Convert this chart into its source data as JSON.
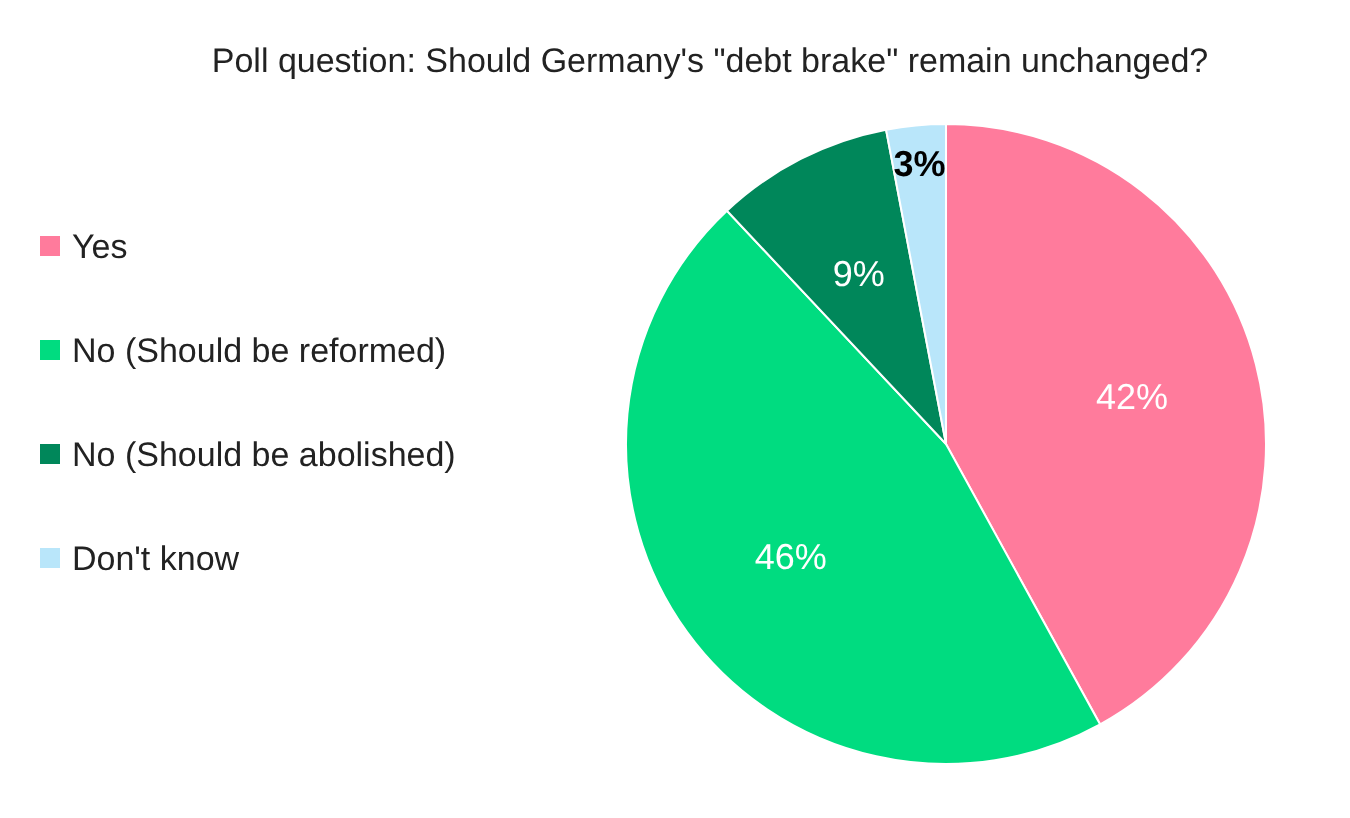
{
  "chart_data": {
    "type": "pie",
    "title": "Poll question: Should Germany's \"debt brake\" remain unchanged?",
    "categories": [
      "Yes",
      "No (Should be reformed)",
      "No (Should be abolished)",
      "Don't know"
    ],
    "values": [
      42,
      46,
      9,
      3
    ],
    "colors": [
      "#ff7b9c",
      "#00dc80",
      "#00875a",
      "#b9e6fa"
    ],
    "value_labels": [
      "42%",
      "46%",
      "9%",
      "3%"
    ],
    "legend": "left"
  }
}
